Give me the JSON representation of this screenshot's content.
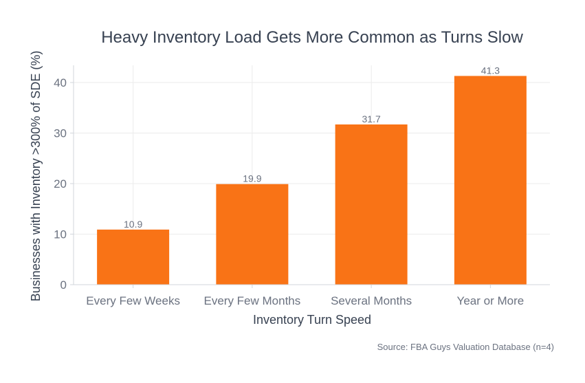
{
  "chart_data": {
    "type": "bar",
    "title": "Heavy Inventory Load Gets More Common as Turns Slow",
    "xlabel": "Inventory Turn Speed",
    "ylabel": "Businesses with Inventory >300% of SDE (%)",
    "categories": [
      "Every Few Weeks",
      "Every Few Months",
      "Several Months",
      "Year or More"
    ],
    "values": [
      10.9,
      19.9,
      31.7,
      41.3
    ],
    "data_labels": [
      "10.9",
      "19.9",
      "31.7",
      "41.3"
    ],
    "yticks": [
      0,
      10,
      20,
      30,
      40
    ],
    "ylim": [
      0,
      43.4
    ],
    "grid": true,
    "bar_color": "#F97316",
    "source": "Source: FBA Guys Valuation Database (n=4)"
  }
}
